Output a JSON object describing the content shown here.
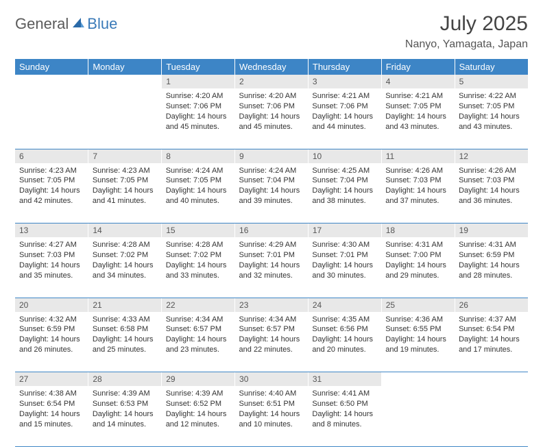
{
  "logo": {
    "text1": "General",
    "text2": "Blue"
  },
  "title": "July 2025",
  "location": "Nanyo, Yamagata, Japan",
  "colors": {
    "header_bg": "#3d85c6",
    "header_text": "#ffffff",
    "daynum_bg": "#e8e8e8",
    "border": "#3d85c6",
    "logo_gray": "#5a5a5a",
    "logo_blue": "#3a7ab8"
  },
  "weekdays": [
    "Sunday",
    "Monday",
    "Tuesday",
    "Wednesday",
    "Thursday",
    "Friday",
    "Saturday"
  ],
  "weeks": [
    [
      null,
      null,
      {
        "n": "1",
        "sr": "4:20 AM",
        "ss": "7:06 PM",
        "dl": "14 hours and 45 minutes."
      },
      {
        "n": "2",
        "sr": "4:20 AM",
        "ss": "7:06 PM",
        "dl": "14 hours and 45 minutes."
      },
      {
        "n": "3",
        "sr": "4:21 AM",
        "ss": "7:06 PM",
        "dl": "14 hours and 44 minutes."
      },
      {
        "n": "4",
        "sr": "4:21 AM",
        "ss": "7:05 PM",
        "dl": "14 hours and 43 minutes."
      },
      {
        "n": "5",
        "sr": "4:22 AM",
        "ss": "7:05 PM",
        "dl": "14 hours and 43 minutes."
      }
    ],
    [
      {
        "n": "6",
        "sr": "4:23 AM",
        "ss": "7:05 PM",
        "dl": "14 hours and 42 minutes."
      },
      {
        "n": "7",
        "sr": "4:23 AM",
        "ss": "7:05 PM",
        "dl": "14 hours and 41 minutes."
      },
      {
        "n": "8",
        "sr": "4:24 AM",
        "ss": "7:05 PM",
        "dl": "14 hours and 40 minutes."
      },
      {
        "n": "9",
        "sr": "4:24 AM",
        "ss": "7:04 PM",
        "dl": "14 hours and 39 minutes."
      },
      {
        "n": "10",
        "sr": "4:25 AM",
        "ss": "7:04 PM",
        "dl": "14 hours and 38 minutes."
      },
      {
        "n": "11",
        "sr": "4:26 AM",
        "ss": "7:03 PM",
        "dl": "14 hours and 37 minutes."
      },
      {
        "n": "12",
        "sr": "4:26 AM",
        "ss": "7:03 PM",
        "dl": "14 hours and 36 minutes."
      }
    ],
    [
      {
        "n": "13",
        "sr": "4:27 AM",
        "ss": "7:03 PM",
        "dl": "14 hours and 35 minutes."
      },
      {
        "n": "14",
        "sr": "4:28 AM",
        "ss": "7:02 PM",
        "dl": "14 hours and 34 minutes."
      },
      {
        "n": "15",
        "sr": "4:28 AM",
        "ss": "7:02 PM",
        "dl": "14 hours and 33 minutes."
      },
      {
        "n": "16",
        "sr": "4:29 AM",
        "ss": "7:01 PM",
        "dl": "14 hours and 32 minutes."
      },
      {
        "n": "17",
        "sr": "4:30 AM",
        "ss": "7:01 PM",
        "dl": "14 hours and 30 minutes."
      },
      {
        "n": "18",
        "sr": "4:31 AM",
        "ss": "7:00 PM",
        "dl": "14 hours and 29 minutes."
      },
      {
        "n": "19",
        "sr": "4:31 AM",
        "ss": "6:59 PM",
        "dl": "14 hours and 28 minutes."
      }
    ],
    [
      {
        "n": "20",
        "sr": "4:32 AM",
        "ss": "6:59 PM",
        "dl": "14 hours and 26 minutes."
      },
      {
        "n": "21",
        "sr": "4:33 AM",
        "ss": "6:58 PM",
        "dl": "14 hours and 25 minutes."
      },
      {
        "n": "22",
        "sr": "4:34 AM",
        "ss": "6:57 PM",
        "dl": "14 hours and 23 minutes."
      },
      {
        "n": "23",
        "sr": "4:34 AM",
        "ss": "6:57 PM",
        "dl": "14 hours and 22 minutes."
      },
      {
        "n": "24",
        "sr": "4:35 AM",
        "ss": "6:56 PM",
        "dl": "14 hours and 20 minutes."
      },
      {
        "n": "25",
        "sr": "4:36 AM",
        "ss": "6:55 PM",
        "dl": "14 hours and 19 minutes."
      },
      {
        "n": "26",
        "sr": "4:37 AM",
        "ss": "6:54 PM",
        "dl": "14 hours and 17 minutes."
      }
    ],
    [
      {
        "n": "27",
        "sr": "4:38 AM",
        "ss": "6:54 PM",
        "dl": "14 hours and 15 minutes."
      },
      {
        "n": "28",
        "sr": "4:39 AM",
        "ss": "6:53 PM",
        "dl": "14 hours and 14 minutes."
      },
      {
        "n": "29",
        "sr": "4:39 AM",
        "ss": "6:52 PM",
        "dl": "14 hours and 12 minutes."
      },
      {
        "n": "30",
        "sr": "4:40 AM",
        "ss": "6:51 PM",
        "dl": "14 hours and 10 minutes."
      },
      {
        "n": "31",
        "sr": "4:41 AM",
        "ss": "6:50 PM",
        "dl": "14 hours and 8 minutes."
      },
      null,
      null
    ]
  ],
  "labels": {
    "sunrise": "Sunrise: ",
    "sunset": "Sunset: ",
    "daylight": "Daylight: "
  }
}
